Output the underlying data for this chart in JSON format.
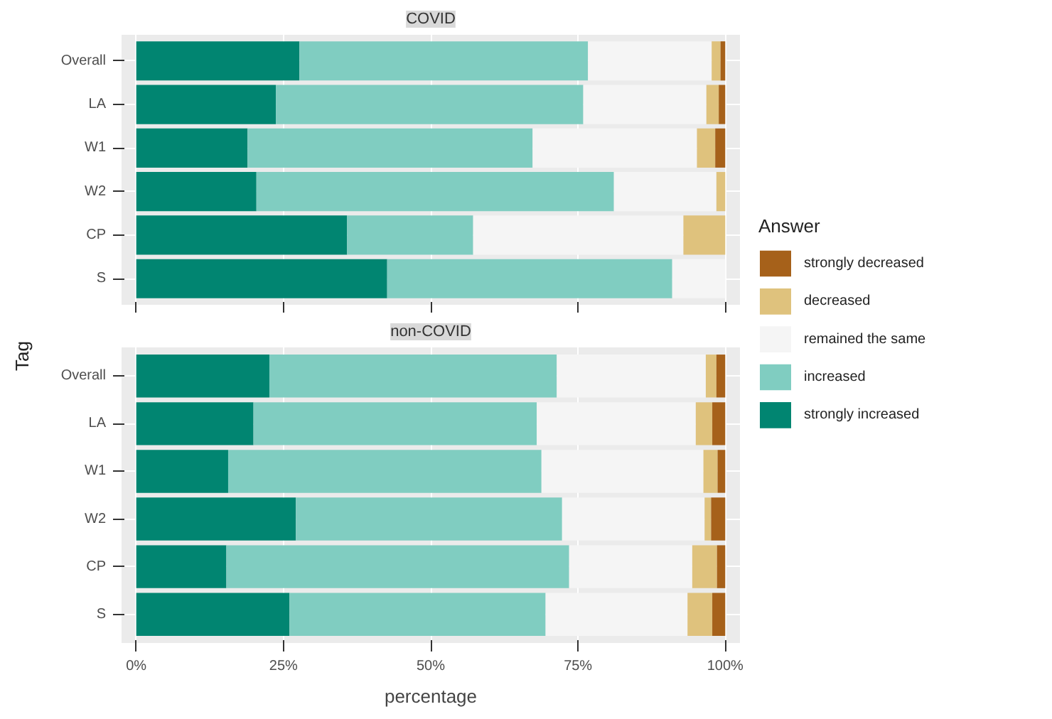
{
  "chart_data": [
    {
      "type": "bar",
      "orientation": "horizontal",
      "stacked": true,
      "title": "COVID",
      "ylabel": "Tag",
      "legend_title": "Answer",
      "legend": "right",
      "grid": true,
      "tick_labels": "y",
      "categories": [
        "Overall",
        "LA",
        "W1",
        "W2",
        "CP",
        "S"
      ],
      "xlim": [
        -2.5,
        102.5
      ],
      "xticks": [
        {
          "value": 0,
          "label": null
        },
        {
          "value": 25,
          "label": null
        },
        {
          "value": 50,
          "label": null
        },
        {
          "value": 75,
          "label": null
        },
        {
          "value": 100,
          "label": null
        }
      ],
      "series": [
        {
          "name": "strongly increased",
          "color": "#018571",
          "values": [
            27.7,
            23.7,
            18.9,
            20.4,
            35.8,
            42.6
          ]
        },
        {
          "name": "increased",
          "color": "#80cdc1",
          "values": [
            49.0,
            52.2,
            48.4,
            60.7,
            21.4,
            48.4
          ]
        },
        {
          "name": "remained the same",
          "color": "#f5f5f5",
          "values": [
            21.0,
            20.9,
            27.9,
            17.4,
            35.7,
            9.0
          ]
        },
        {
          "name": "decreased",
          "color": "#dfc27d",
          "values": [
            1.5,
            2.1,
            3.1,
            1.5,
            7.1,
            0
          ]
        },
        {
          "name": "strongly decreased",
          "color": "#a6611a",
          "values": [
            0.8,
            1.1,
            1.7,
            0,
            0,
            0
          ]
        }
      ]
    },
    {
      "type": "bar",
      "orientation": "horizontal",
      "stacked": true,
      "title": "non-COVID",
      "xlabel": "percentage",
      "grid": true,
      "categories": [
        "Overall",
        "LA",
        "W1",
        "W2",
        "CP",
        "S"
      ],
      "xlim": [
        -2.5,
        102.5
      ],
      "xticks": [
        {
          "value": 0,
          "label": "0%"
        },
        {
          "value": 25,
          "label": "25%"
        },
        {
          "value": 50,
          "label": "50%"
        },
        {
          "value": 75,
          "label": "75%"
        },
        {
          "value": 100,
          "label": "100%"
        }
      ],
      "series": [
        {
          "color": "#018571",
          "values": [
            22.6,
            19.9,
            15.6,
            27.1,
            15.3,
            26.0
          ]
        },
        {
          "color": "#80cdc1",
          "values": [
            48.8,
            48.1,
            53.2,
            45.2,
            58.2,
            43.5
          ]
        },
        {
          "color": "#f5f5f5",
          "values": [
            25.3,
            27.0,
            27.5,
            24.2,
            20.9,
            24.1
          ]
        },
        {
          "color": "#dfc27d",
          "values": [
            1.8,
            2.8,
            2.4,
            1.1,
            4.2,
            4.2
          ]
        },
        {
          "color": "#a6611a",
          "values": [
            1.5,
            2.2,
            1.3,
            2.4,
            1.4,
            2.2
          ]
        }
      ]
    }
  ]
}
